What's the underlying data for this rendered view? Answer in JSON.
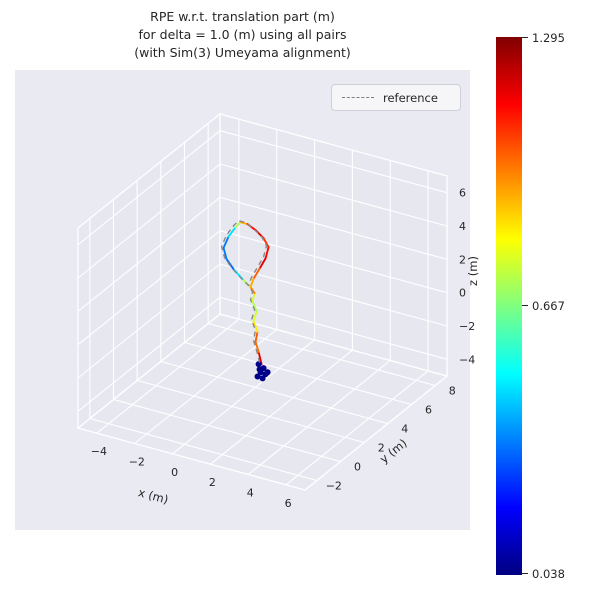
{
  "colors": {
    "figure_background": "#ffffff",
    "axes_background": "#eaeaf2",
    "grid": "#ffffff",
    "text": "#262626",
    "reference_line": "#888888"
  },
  "chart_data": {
    "type": "line",
    "subtype": "3d-trajectory-colored-by-error",
    "title": "RPE w.r.t. translation part (m)\nfor delta = 1.0 (m) using all pairs\n(with Sim(3) Umeyama alignment)",
    "xlabel": "x (m)",
    "ylabel": "y (m)",
    "zlabel": "z (m)",
    "xlim": [
      -5,
      7
    ],
    "ylim": [
      -3,
      9
    ],
    "zlim": [
      -5,
      7
    ],
    "xticks": [
      -4,
      -2,
      0,
      2,
      4,
      6
    ],
    "yticks": [
      -2,
      0,
      2,
      4,
      6,
      8
    ],
    "zticks": [
      -4,
      -2,
      0,
      2,
      4,
      6
    ],
    "grid": true,
    "legend": {
      "label": "reference",
      "position": "upper right"
    },
    "colormap": "jet",
    "colorbar": {
      "min": 0.038,
      "mid": 0.667,
      "max": 1.295,
      "min_label": "0.038",
      "mid_label": "0.667",
      "max_label": "1.295"
    },
    "trajectory": {
      "x": [
        0.5,
        0.5,
        0.5,
        0.5,
        0.5,
        0.5,
        0.5,
        0.5,
        0.5,
        0.5,
        0.5,
        0.5,
        0.5,
        0.5,
        0.5,
        0.5,
        0.5,
        0.5,
        0.5,
        0.5,
        0.5,
        0.5,
        0.5,
        0.5
      ],
      "y": [
        3.72,
        3.47,
        3.21,
        3.38,
        3.04,
        3.3,
        2.96,
        3.13,
        2.79,
        2.11,
        1.35,
        0.76,
        0.51,
        0.93,
        1.52,
        1.94,
        2.54,
        3.21,
        3.89,
        4.31,
        4.06,
        3.55,
        3.04,
        2.79
      ],
      "z": [
        -3.29,
        -2.42,
        -1.66,
        -1.15,
        -0.35,
        0.11,
        0.91,
        1.3,
        1.86,
        2.73,
        3.76,
        4.7,
        5.51,
        5.95,
        6.17,
        6.24,
        5.78,
        5.04,
        4.17,
        3.39,
        2.86,
        2.53,
        2.21,
        1.86
      ],
      "error": [
        1.25,
        1.1,
        0.9,
        1.15,
        0.55,
        1.0,
        0.45,
        1.1,
        0.85,
        0.6,
        0.35,
        0.3,
        0.4,
        0.3,
        0.65,
        0.8,
        1.05,
        1.2,
        1.15,
        1.0,
        1.25,
        1.1,
        0.95,
        0.9
      ]
    },
    "start_cluster": [
      [
        0.5,
        3.47,
        -3.15
      ],
      [
        0.5,
        3.89,
        -3.63
      ],
      [
        0.5,
        3.64,
        -3.74
      ],
      [
        0.5,
        4.06,
        -4.09
      ],
      [
        0.5,
        3.38,
        -3.84
      ],
      [
        0.5,
        3.81,
        -4.2
      ],
      [
        0.5,
        4.23,
        -4.07
      ],
      [
        0.5,
        3.55,
        -3.51
      ]
    ]
  }
}
